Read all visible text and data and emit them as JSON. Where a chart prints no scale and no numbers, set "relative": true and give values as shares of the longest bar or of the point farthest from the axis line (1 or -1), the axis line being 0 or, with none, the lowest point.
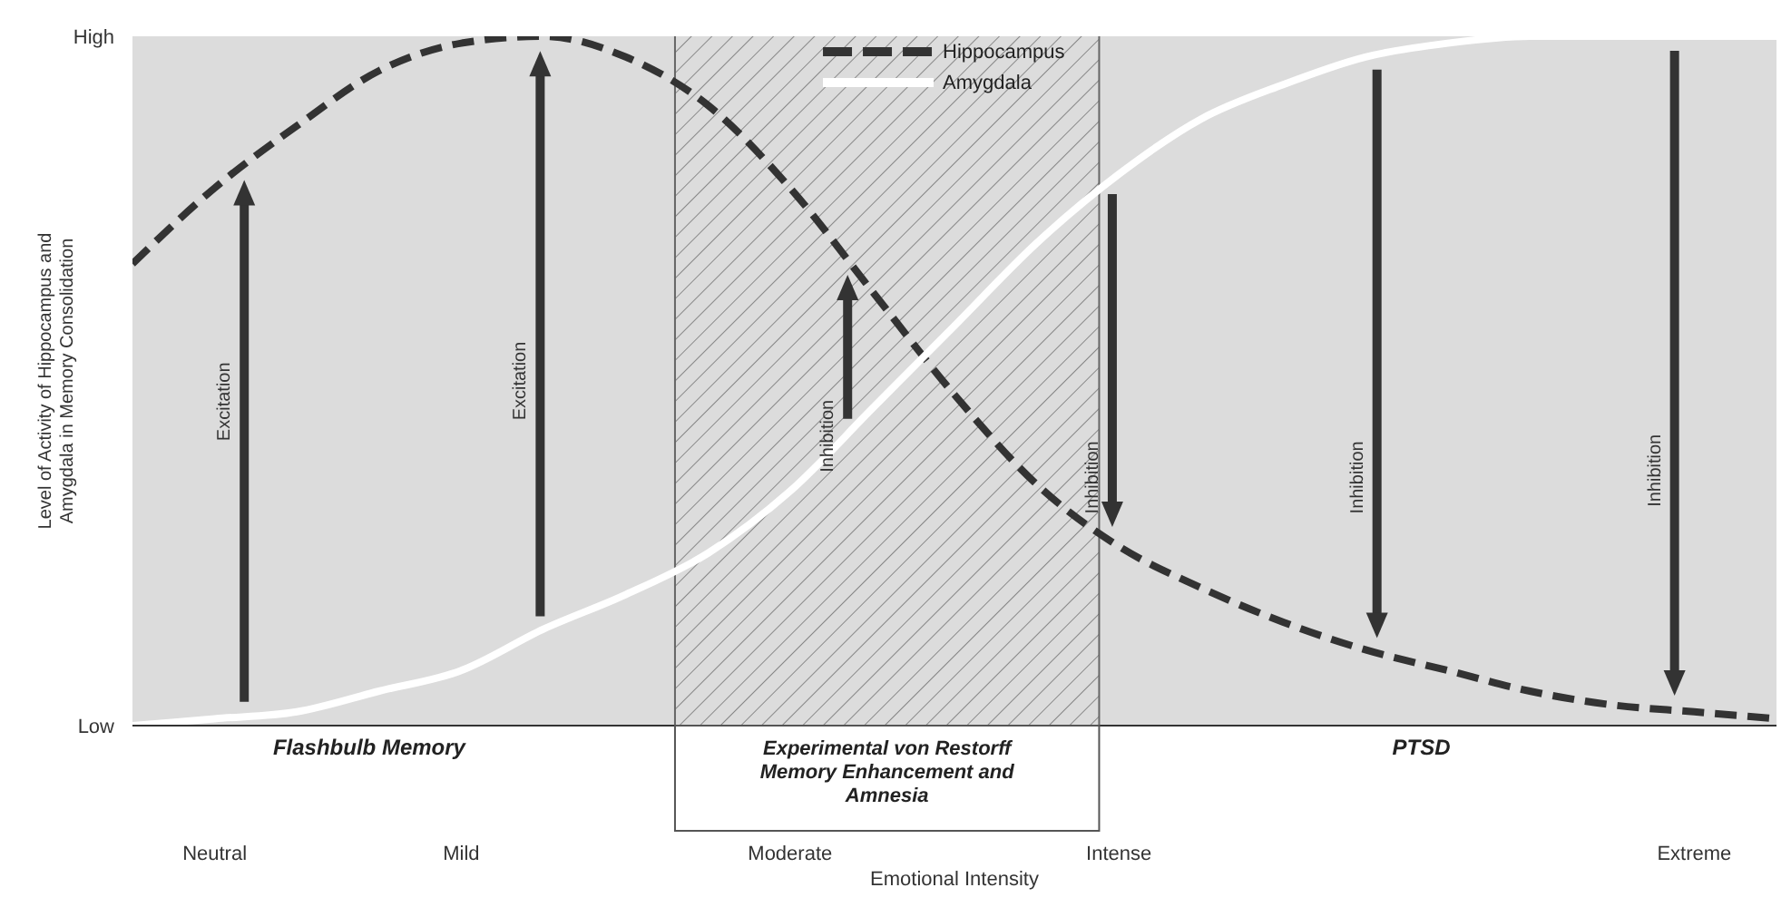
{
  "chart_data": {
    "type": "line",
    "relative": true,
    "xlabel": "Emotional Intensity",
    "ylabel": "Level of Activity of Hippocampus and Amygdala in Memory Consolidation",
    "categories": [
      null,
      "Neutral",
      null,
      null,
      "Mild",
      null,
      null,
      null,
      "Moderate",
      null,
      null,
      null,
      "Intense",
      null,
      null,
      null,
      null,
      null,
      null,
      "Extreme",
      null
    ],
    "grid": false,
    "legend": "top",
    "marker": "none",
    "series": [
      {
        "name": "Hippocampus",
        "color": "#333333",
        "line_style": "dashed",
        "values": [
          0.67,
          0.78,
          0.87,
          0.95,
          0.99,
          1.0,
          0.97,
          0.9,
          0.78,
          0.63,
          0.48,
          0.35,
          0.26,
          0.2,
          0.15,
          0.11,
          0.08,
          0.05,
          0.03,
          0.02,
          0.01
        ]
      },
      {
        "name": "Amygdala",
        "color": "#ffffff",
        "line_style": "solid",
        "values": [
          0,
          0.01,
          0.02,
          0.05,
          0.08,
          0.14,
          0.19,
          0.25,
          0.34,
          0.46,
          0.58,
          0.7,
          0.8,
          0.88,
          0.93,
          0.97,
          0.99,
          1.0,
          1.0,
          1.0,
          1.0
        ]
      }
    ],
    "annotations": [
      "High",
      "Low",
      "Excitation",
      "Excitation",
      "Inhibition",
      "Inhibition",
      "Inhibition",
      "Inhibition",
      "Flashbulb Memory",
      "Experimental von Restorff Memory Enhancement and Amnesia",
      "PTSD"
    ]
  }
}
